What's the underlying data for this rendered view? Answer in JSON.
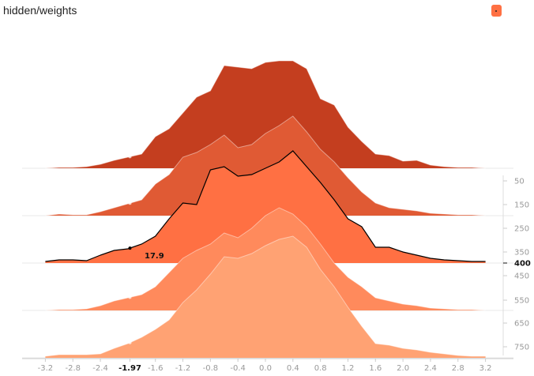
{
  "title": "hidden/weights",
  "toggle": {
    "color": "#ff7043"
  },
  "chart_data": {
    "type": "area",
    "mode": "offset",
    "xlim": [
      -3.4,
      3.4
    ],
    "x_ticks": [
      "-3.2",
      "-2.8",
      "-2.4",
      "-1.97",
      "-1.6",
      "-1.2",
      "-0.8",
      "-0.4",
      "0.0",
      "0.4",
      "0.8",
      "1.2",
      "1.6",
      "2.0",
      "2.4",
      "2.8",
      "3.2"
    ],
    "x_tick_values": [
      -3.2,
      -2.8,
      -2.4,
      -1.97,
      -1.6,
      -1.2,
      -0.8,
      -0.4,
      0.0,
      0.4,
      0.8,
      1.2,
      1.6,
      2.0,
      2.4,
      2.8,
      3.2
    ],
    "x_highlight": "-1.97",
    "y_ticks": [
      "50",
      "150",
      "250",
      "350",
      "400",
      "450",
      "550",
      "650",
      "750"
    ],
    "y_highlight": "400",
    "hover": {
      "step": 400,
      "x": -1.97,
      "value": "17.9"
    },
    "x": [
      -3.2,
      -3.0,
      -2.8,
      -2.6,
      -2.4,
      -2.2,
      -2.0,
      -1.8,
      -1.6,
      -1.4,
      -1.2,
      -1.0,
      -0.8,
      -0.6,
      -0.4,
      -0.2,
      0.0,
      0.2,
      0.4,
      0.6,
      0.8,
      1.0,
      1.2,
      1.4,
      1.6,
      1.8,
      2.0,
      2.2,
      2.4,
      2.6,
      2.8,
      3.0,
      3.2
    ],
    "series": [
      {
        "step": 0,
        "color": "#c43e1f",
        "values": [
          0,
          1,
          1,
          2,
          5,
          10,
          14,
          18,
          40,
          50,
          70,
          90,
          98,
          130,
          128,
          126,
          134,
          136,
          136,
          126,
          88,
          80,
          52,
          34,
          18,
          16,
          9,
          10,
          4,
          2,
          1,
          1,
          0
        ]
      },
      {
        "step": 150,
        "color": "#e05a34",
        "values": [
          0,
          2,
          1,
          1,
          5,
          10,
          15,
          20,
          40,
          52,
          74,
          80,
          90,
          102,
          86,
          90,
          104,
          114,
          126,
          106,
          84,
          68,
          48,
          30,
          16,
          10,
          8,
          6,
          3,
          2,
          1,
          1,
          0
        ]
      },
      {
        "step": 300,
        "color": "#ff7043",
        "values": [
          2,
          4,
          4,
          3,
          10,
          16,
          18,
          24,
          34,
          56,
          76,
          74,
          118,
          122,
          110,
          112,
          120,
          128,
          142,
          122,
          102,
          80,
          56,
          46,
          20,
          20,
          14,
          10,
          6,
          4,
          3,
          2,
          2
        ]
      },
      {
        "step": 450,
        "color": "#ff8a5c",
        "values": [
          0,
          1,
          1,
          2,
          6,
          12,
          16,
          20,
          30,
          48,
          66,
          76,
          84,
          98,
          92,
          104,
          120,
          130,
          122,
          106,
          84,
          60,
          42,
          30,
          16,
          12,
          8,
          6,
          3,
          2,
          1,
          1,
          0
        ]
      },
      {
        "step": 600,
        "color": "#ffa273",
        "values": [
          2,
          4,
          4,
          4,
          5,
          12,
          18,
          26,
          36,
          48,
          70,
          86,
          106,
          128,
          126,
          132,
          142,
          150,
          154,
          140,
          112,
          90,
          64,
          40,
          18,
          16,
          12,
          10,
          7,
          5,
          3,
          2,
          2
        ]
      }
    ]
  }
}
